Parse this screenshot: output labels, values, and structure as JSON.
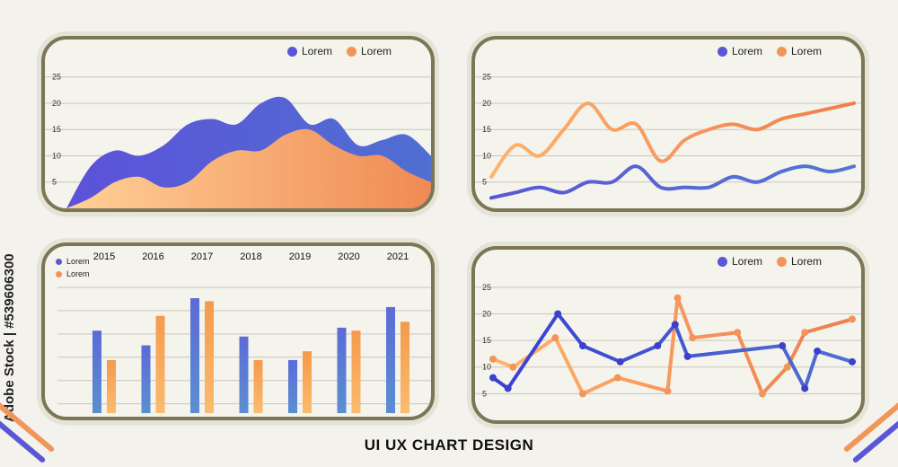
{
  "colors": {
    "blue": "#5a57d6",
    "orange": "#f2955a",
    "bluebar": "#5b79d1",
    "orangebar": "#f59a4c"
  },
  "footer": {
    "title": "UI UX CHART DESIGN"
  },
  "watermark": {
    "text": "Adobe Stock | #539606300"
  },
  "chart_data": [
    {
      "type": "area",
      "legend": [
        "Lorem",
        "Lorem"
      ],
      "yticks": [
        5,
        10,
        15,
        20,
        25
      ],
      "ylim": [
        0,
        27
      ],
      "x": [
        0,
        1,
        2,
        3,
        4,
        5,
        6,
        7,
        8,
        9,
        10,
        11,
        12,
        13,
        14,
        15
      ],
      "series": [
        {
          "name": "Lorem",
          "values": [
            0,
            8,
            11,
            10,
            12,
            16,
            17,
            16,
            20,
            21,
            16,
            17,
            12,
            13,
            14,
            10
          ]
        },
        {
          "name": "Lorem",
          "values": [
            0,
            2,
            5,
            6,
            4,
            5,
            9,
            11,
            11,
            14,
            15,
            12,
            10,
            10,
            7,
            5
          ]
        }
      ]
    },
    {
      "type": "line",
      "legend": [
        "Lorem",
        "Lorem"
      ],
      "yticks": [
        5,
        10,
        15,
        20,
        25
      ],
      "ylim": [
        0,
        27
      ],
      "x": [
        0,
        1,
        2,
        3,
        4,
        5,
        6,
        7,
        8,
        9,
        10,
        11,
        12,
        13,
        14,
        15
      ],
      "series": [
        {
          "name": "Lorem",
          "values": [
            6,
            12,
            10,
            15,
            20,
            15,
            16,
            9,
            13,
            15,
            16,
            15,
            17,
            18,
            19,
            20
          ]
        },
        {
          "name": "Lorem",
          "values": [
            2,
            3,
            4,
            3,
            5,
            5,
            8,
            4,
            4,
            4,
            6,
            5,
            7,
            8,
            7,
            8
          ]
        }
      ]
    },
    {
      "type": "bar",
      "legend": [
        "Lorem",
        "Lorem"
      ],
      "categories": [
        "2015",
        "2016",
        "2017",
        "2018",
        "2019",
        "2020",
        "2021"
      ],
      "ylim": [
        0,
        25
      ],
      "series": [
        {
          "name": "Lorem",
          "values": [
            14,
            11.5,
            19.5,
            13,
            9,
            14.5,
            18
          ]
        },
        {
          "name": "Lorem",
          "values": [
            9,
            16.5,
            19,
            9,
            10.5,
            14,
            15.5
          ]
        }
      ]
    },
    {
      "type": "line",
      "legend": [
        "Lorem",
        "Lorem"
      ],
      "yticks": [
        5,
        10,
        15,
        20,
        25
      ],
      "ylim": [
        0,
        27
      ],
      "x": [
        1,
        2,
        3,
        4,
        5,
        6,
        7,
        8,
        9,
        10,
        11,
        12,
        13,
        14
      ],
      "series": [
        {
          "name": "Lorem",
          "x": [
            0,
            0.6,
            2.6,
            3.6,
            5.1,
            6.6,
            7.3,
            7.8,
            11.6,
            12.5,
            13.0,
            14.4
          ],
          "values": [
            8,
            6,
            20,
            14,
            11,
            14,
            18,
            12,
            14,
            6,
            13,
            11
          ]
        },
        {
          "name": "Lorem",
          "x": [
            0,
            0.8,
            2.5,
            3.6,
            5.0,
            7.0,
            7.4,
            8.0,
            9.8,
            10.8,
            11.8,
            12.5,
            14.4
          ],
          "values": [
            11.5,
            10,
            15.5,
            5,
            8,
            5.5,
            23,
            15.5,
            16.5,
            5,
            10,
            16.5,
            19
          ]
        }
      ]
    }
  ]
}
